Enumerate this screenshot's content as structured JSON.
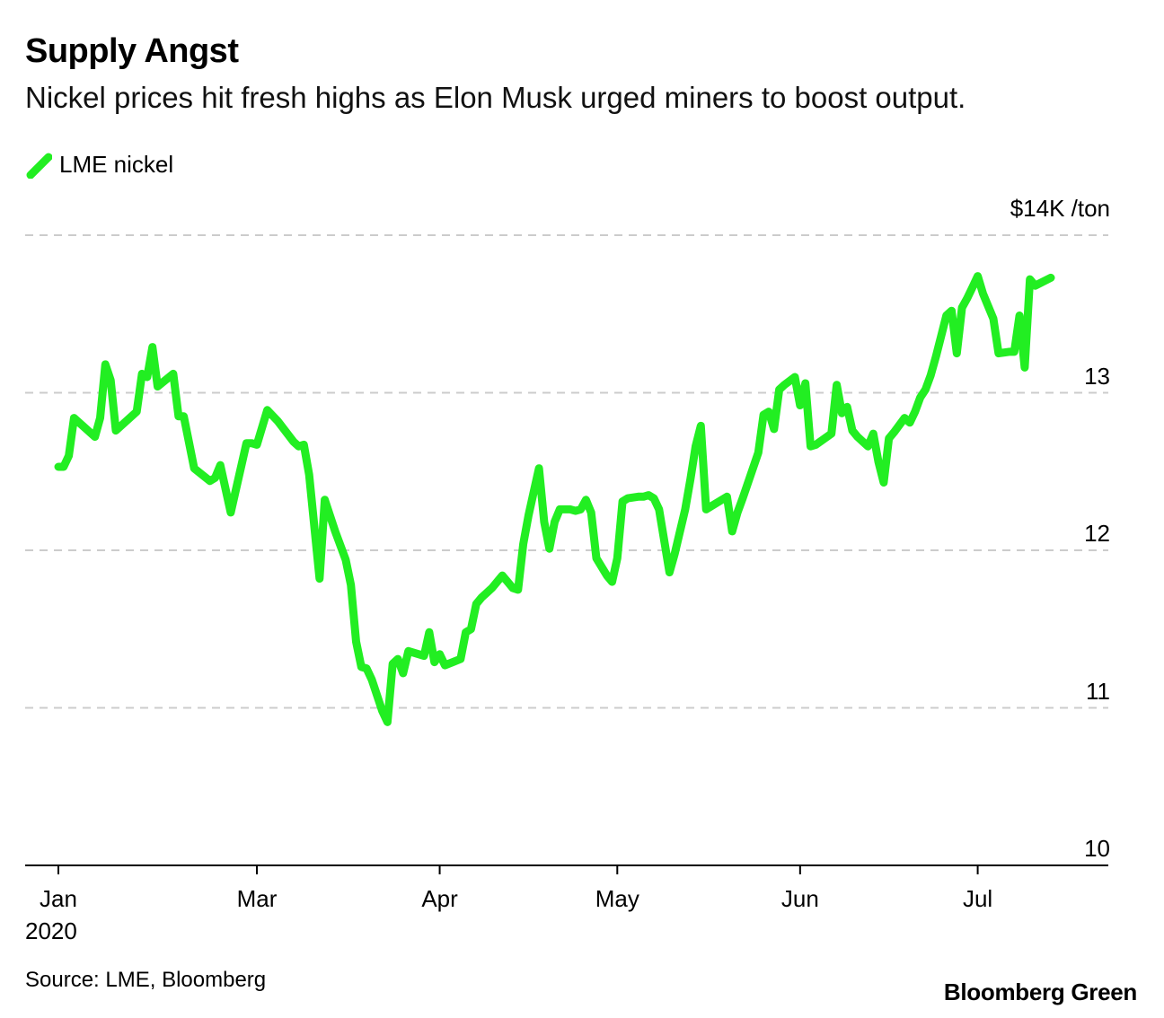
{
  "chart_data": {
    "type": "line",
    "title": "Supply Angst",
    "subtitle": "Nickel prices hit fresh highs as Elon Musk urged miners to boost output.",
    "unit_label": "$14K /ton",
    "ylim": [
      10,
      14
    ],
    "yticks": [
      {
        "value": 13,
        "label": "13"
      },
      {
        "value": 12,
        "label": "12"
      },
      {
        "value": 11,
        "label": "11"
      },
      {
        "value": 10,
        "label": "10"
      }
    ],
    "x_domain": [
      0,
      208
    ],
    "xticks": [
      {
        "day": 0,
        "label": "Jan"
      },
      {
        "day": 38,
        "label": "Mar"
      },
      {
        "day": 73,
        "label": "Apr"
      },
      {
        "day": 107,
        "label": "May"
      },
      {
        "day": 142,
        "label": "Jun"
      },
      {
        "day": 176,
        "label": "Jul"
      }
    ],
    "x_year_label": "2020",
    "series": [
      {
        "name": "LME nickel",
        "color": "#22ee22",
        "points": [
          [
            0,
            12.53
          ],
          [
            1,
            12.53
          ],
          [
            2,
            12.6
          ],
          [
            3,
            12.84
          ],
          [
            5,
            12.78
          ],
          [
            7,
            12.72
          ],
          [
            8,
            12.84
          ],
          [
            9,
            13.18
          ],
          [
            10,
            13.08
          ],
          [
            11,
            12.76
          ],
          [
            13,
            12.82
          ],
          [
            15,
            12.88
          ],
          [
            16,
            13.12
          ],
          [
            17,
            13.1
          ],
          [
            18,
            13.29
          ],
          [
            19,
            13.04
          ],
          [
            22,
            13.12
          ],
          [
            23,
            12.85
          ],
          [
            24,
            12.85
          ],
          [
            26,
            12.52
          ],
          [
            29,
            12.44
          ],
          [
            30,
            12.46
          ],
          [
            31,
            12.54
          ],
          [
            33,
            12.24
          ],
          [
            36,
            12.68
          ],
          [
            37,
            12.68
          ],
          [
            38,
            12.67
          ],
          [
            40,
            12.89
          ],
          [
            42,
            12.82
          ],
          [
            45,
            12.69
          ],
          [
            46,
            12.66
          ],
          [
            47,
            12.67
          ],
          [
            48,
            12.48
          ],
          [
            50,
            11.82
          ],
          [
            51,
            12.32
          ],
          [
            52,
            12.22
          ],
          [
            53,
            12.12
          ],
          [
            55,
            11.94
          ],
          [
            56,
            11.78
          ],
          [
            57,
            11.42
          ],
          [
            58,
            11.26
          ],
          [
            59,
            11.25
          ],
          [
            60,
            11.18
          ],
          [
            62,
            10.98
          ],
          [
            63,
            10.91
          ],
          [
            64,
            11.28
          ],
          [
            65,
            11.31
          ],
          [
            66,
            11.22
          ],
          [
            67,
            11.36
          ],
          [
            70,
            11.33
          ],
          [
            71,
            11.48
          ],
          [
            72,
            11.29
          ],
          [
            73,
            11.34
          ],
          [
            74,
            11.27
          ],
          [
            77,
            11.31
          ],
          [
            78,
            11.48
          ],
          [
            79,
            11.5
          ],
          [
            80,
            11.66
          ],
          [
            81,
            11.7
          ],
          [
            82,
            11.73
          ],
          [
            83,
            11.76
          ],
          [
            84,
            11.8
          ],
          [
            85,
            11.84
          ],
          [
            86,
            11.8
          ],
          [
            87,
            11.76
          ],
          [
            88,
            11.75
          ],
          [
            89,
            12.04
          ],
          [
            90,
            12.22
          ],
          [
            91,
            12.37
          ],
          [
            92,
            12.52
          ],
          [
            93,
            12.18
          ],
          [
            94,
            12.01
          ],
          [
            95,
            12.18
          ],
          [
            96,
            12.26
          ],
          [
            98,
            12.26
          ],
          [
            99,
            12.25
          ],
          [
            100,
            12.26
          ],
          [
            101,
            12.32
          ],
          [
            102,
            12.24
          ],
          [
            103,
            11.95
          ],
          [
            105,
            11.84
          ],
          [
            106,
            11.8
          ],
          [
            107,
            11.95
          ],
          [
            108,
            12.31
          ],
          [
            109,
            12.33
          ],
          [
            111,
            12.34
          ],
          [
            112,
            12.34
          ],
          [
            113,
            12.35
          ],
          [
            114,
            12.33
          ],
          [
            115,
            12.26
          ],
          [
            117,
            11.86
          ],
          [
            118,
            11.98
          ],
          [
            119,
            12.12
          ],
          [
            120,
            12.26
          ],
          [
            121,
            12.45
          ],
          [
            122,
            12.66
          ],
          [
            123,
            12.79
          ],
          [
            124,
            12.26
          ],
          [
            126,
            12.3
          ],
          [
            127,
            12.32
          ],
          [
            128,
            12.34
          ],
          [
            129,
            12.12
          ],
          [
            130,
            12.24
          ],
          [
            131,
            12.33
          ],
          [
            134,
            12.62
          ],
          [
            135,
            12.86
          ],
          [
            136,
            12.88
          ],
          [
            137,
            12.77
          ],
          [
            138,
            13.02
          ],
          [
            139,
            13.05
          ],
          [
            141,
            13.1
          ],
          [
            142,
            12.92
          ],
          [
            143,
            13.06
          ],
          [
            144,
            12.66
          ],
          [
            145,
            12.67
          ],
          [
            148,
            12.74
          ],
          [
            149,
            13.05
          ],
          [
            150,
            12.87
          ],
          [
            151,
            12.91
          ],
          [
            152,
            12.76
          ],
          [
            153,
            12.72
          ],
          [
            154,
            12.69
          ],
          [
            155,
            12.66
          ],
          [
            156,
            12.74
          ],
          [
            157,
            12.56
          ],
          [
            158,
            12.43
          ],
          [
            159,
            12.71
          ],
          [
            160,
            12.75
          ],
          [
            162,
            12.84
          ],
          [
            163,
            12.81
          ],
          [
            164,
            12.88
          ],
          [
            165,
            12.97
          ],
          [
            166,
            13.02
          ],
          [
            167,
            13.11
          ],
          [
            168,
            13.23
          ],
          [
            169,
            13.36
          ],
          [
            170,
            13.49
          ],
          [
            171,
            13.52
          ],
          [
            172,
            13.25
          ],
          [
            173,
            13.54
          ],
          [
            174,
            13.6
          ],
          [
            175,
            13.67
          ],
          [
            176,
            13.74
          ],
          [
            177,
            13.63
          ],
          [
            178,
            13.55
          ],
          [
            179,
            13.47
          ],
          [
            180,
            13.25
          ],
          [
            182,
            13.26
          ],
          [
            183,
            13.26
          ],
          [
            184,
            13.49
          ],
          [
            185,
            13.16
          ],
          [
            186,
            13.72
          ],
          [
            187,
            13.68
          ],
          [
            190,
            13.73
          ]
        ]
      }
    ]
  },
  "legend": {
    "label": "LME nickel"
  },
  "source": "Source: LME, Bloomberg",
  "brand": "Bloomberg Green"
}
